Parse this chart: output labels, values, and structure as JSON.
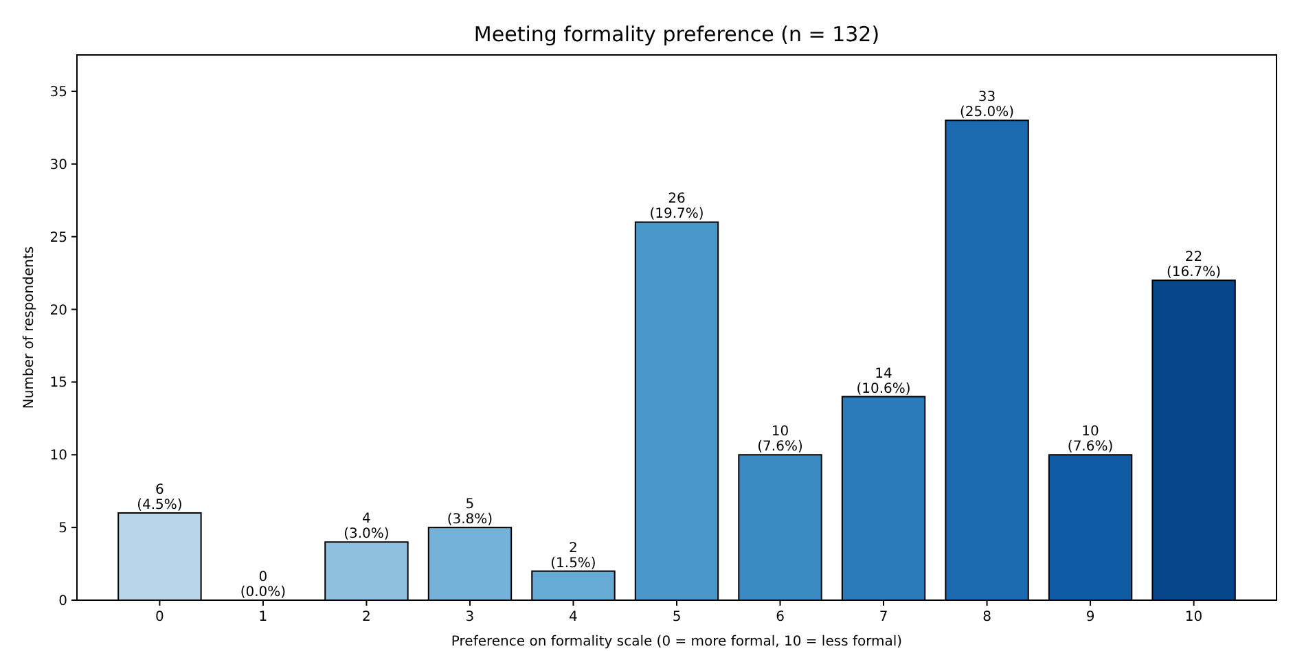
{
  "chart_data": {
    "type": "bar",
    "title": "Meeting formality preference (n = 132)",
    "xlabel": "Preference on formality scale (0 = more formal, 10 = less formal)",
    "ylabel": "Number of respondents",
    "categories": [
      "0",
      "1",
      "2",
      "3",
      "4",
      "5",
      "6",
      "7",
      "8",
      "9",
      "10"
    ],
    "values": [
      6,
      0,
      4,
      5,
      2,
      26,
      10,
      14,
      33,
      10,
      22
    ],
    "colors": [
      "#b8d5ea",
      "#a6cde4",
      "#8fc0df",
      "#74b2da",
      "#66abd5",
      "#4a97c9",
      "#3a8bc2",
      "#2b7bba",
      "#1b6aaf",
      "#0f5ca5",
      "#08468b"
    ],
    "value_labels": [
      "6\n(4.5%)",
      "0\n(0.0%)",
      "4\n(3.0%)",
      "5\n(3.8%)",
      "2\n(1.5%)",
      "26\n(19.7%)",
      "10\n(7.6%)",
      "14\n(10.6%)",
      "33\n(25.0%)",
      "10\n(7.6%)",
      "22\n(16.7%)"
    ],
    "ylim": [
      0,
      37.5
    ],
    "yticks": [
      0,
      5,
      10,
      15,
      20,
      25,
      30,
      35
    ],
    "grid": false
  }
}
